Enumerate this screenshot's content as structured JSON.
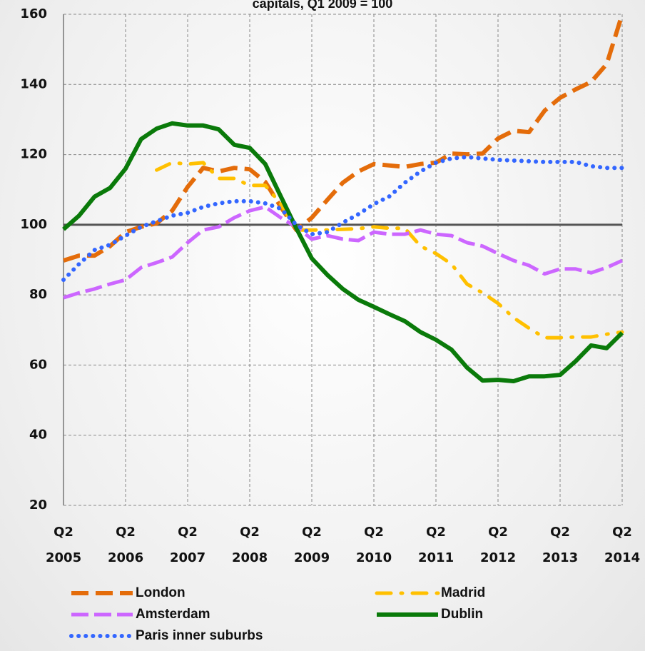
{
  "chart_data": {
    "type": "line",
    "title": "capitals, Q1 2009 = 100",
    "categories": [
      "Q2 2005",
      null,
      null,
      null,
      "Q2 2006",
      null,
      null,
      null,
      "Q2 2007",
      null,
      null,
      null,
      "Q2 2008",
      null,
      null,
      null,
      "Q2 2009",
      null,
      null,
      null,
      "Q2 2010",
      null,
      null,
      null,
      "Q2 2011",
      null,
      null,
      null,
      "Q2 2012",
      null,
      null,
      null,
      "Q2 2013",
      null,
      null,
      null,
      "Q2 2014"
    ],
    "ylim": [
      20,
      160
    ],
    "yticks": [
      20,
      40,
      60,
      80,
      100,
      120,
      140,
      160
    ],
    "grid": true,
    "reference_line": 100,
    "series": [
      {
        "name": "London",
        "color": "#e46c0a",
        "dash": "long-dash",
        "values": [
          89.8,
          91.2,
          91.2,
          93.9,
          97.9,
          99.4,
          100.4,
          104,
          110.8,
          116.2,
          115.2,
          116.2,
          115.8,
          112.2,
          105.1,
          98.5,
          102,
          107.1,
          112,
          115.2,
          117.3,
          116.9,
          116.5,
          117.3,
          117.7,
          120.3,
          120.1,
          120.3,
          124.6,
          126.8,
          126.4,
          132.5,
          136.2,
          138.6,
          140.7,
          145.8,
          160
        ]
      },
      {
        "name": "Madrid",
        "color": "#ffc000",
        "dash": "dash-dot",
        "values": [
          null,
          null,
          null,
          null,
          null,
          null,
          115.6,
          117.7,
          117.3,
          117.7,
          113.2,
          113.2,
          111.2,
          111.2,
          106,
          98.5,
          98.5,
          98.5,
          98.7,
          98.9,
          99.4,
          99,
          99,
          93.9,
          91.8,
          88.8,
          83.1,
          80.6,
          77.6,
          73.5,
          70.5,
          67.8,
          67.8,
          68,
          68,
          68.8,
          69.4
        ]
      },
      {
        "name": "Amsterdam",
        "color": "#cc66ff",
        "dash": "dash",
        "values": [
          79.2,
          80.6,
          81.7,
          83.1,
          84.3,
          87.8,
          89.2,
          90.8,
          94.9,
          98.5,
          99.4,
          102,
          104,
          105.1,
          102,
          99.4,
          95.9,
          96.9,
          95.9,
          95.5,
          97.9,
          97.3,
          97.3,
          98.5,
          97.3,
          96.9,
          94.9,
          93.9,
          91.8,
          89.8,
          88.4,
          86,
          87.4,
          87.4,
          86.3,
          87.8,
          89.8
        ]
      },
      {
        "name": "Dublin",
        "color": "#0a7a0a",
        "dash": "solid",
        "values": [
          98.7,
          102.6,
          108,
          110.5,
          116,
          124.4,
          127.4,
          128.9,
          128.3,
          128.3,
          127.2,
          122.8,
          121.9,
          117.3,
          108.1,
          99,
          90.4,
          85.7,
          81.7,
          78.6,
          76.6,
          74.5,
          72.5,
          69.4,
          67.2,
          64.4,
          59.3,
          55.6,
          55.8,
          55.4,
          56.8,
          56.8,
          57.2,
          61.1,
          65.6,
          64.8,
          69.2
        ]
      },
      {
        "name": "Paris inner suburbs",
        "color": "#3366ff",
        "dash": "dot",
        "values": [
          84.3,
          88.8,
          92.8,
          94.3,
          96.9,
          99.4,
          101,
          102.6,
          103.4,
          105.1,
          106.1,
          106.7,
          106.7,
          106.1,
          104.6,
          100,
          97.3,
          97.9,
          100.6,
          103,
          105.9,
          108.1,
          112,
          115.2,
          117.7,
          118.9,
          119.3,
          118.9,
          118.5,
          118.3,
          118.1,
          117.9,
          117.9,
          117.9,
          116.7,
          116.2,
          116.2
        ]
      }
    ]
  }
}
